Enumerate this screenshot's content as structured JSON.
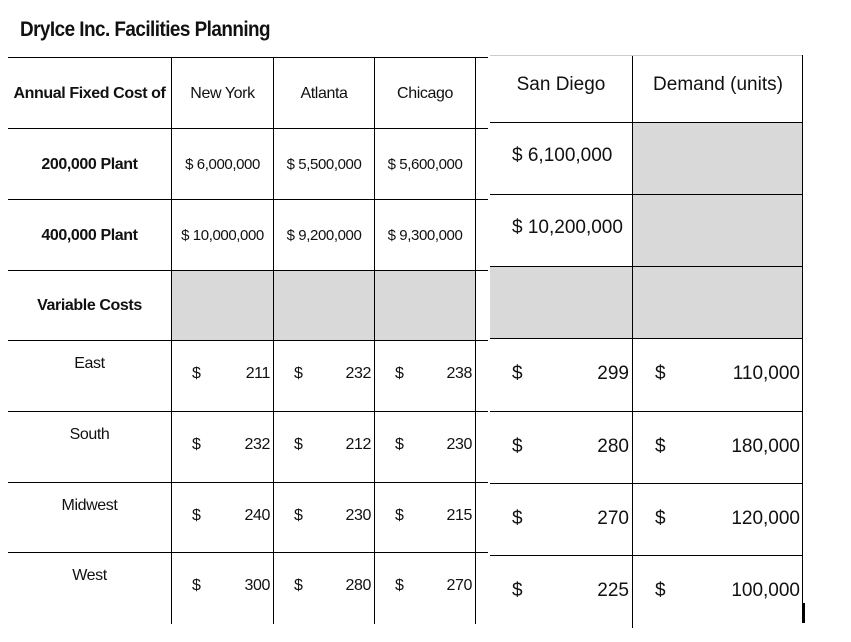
{
  "title": "DryIce Inc. Facilities Planning",
  "left_table": {
    "header": {
      "corner": "Annual Fixed Cost of",
      "cols": [
        "New York",
        "Atlanta",
        "Chicago"
      ]
    },
    "fixed_rows": [
      {
        "label": "200,000 Plant",
        "values": [
          "$  6,000,000",
          "$  5,500,000",
          "$  5,600,000"
        ]
      },
      {
        "label": "400,000 Plant",
        "values": [
          "$ 10,000,000",
          "$  9,200,000",
          "$  9,300,000"
        ]
      }
    ],
    "variable_label": "Variable Costs",
    "variable_rows": [
      {
        "label": "East",
        "values": [
          "211",
          "232",
          "238"
        ]
      },
      {
        "label": "South",
        "values": [
          "232",
          "212",
          "230"
        ]
      },
      {
        "label": "Midwest",
        "values": [
          "240",
          "230",
          "215"
        ]
      },
      {
        "label": "West",
        "values": [
          "300",
          "280",
          "270"
        ]
      }
    ],
    "currency": "$"
  },
  "right_table": {
    "header": [
      "San Diego",
      "Demand (units)"
    ],
    "fixed_values": [
      "$  6,100,000",
      "$ 10,200,000"
    ],
    "variable_rows": [
      {
        "san_diego": "299",
        "demand": "110,000"
      },
      {
        "san_diego": "280",
        "demand": "180,000"
      },
      {
        "san_diego": "270",
        "demand": "120,000"
      },
      {
        "san_diego": "225",
        "demand": "100,000"
      }
    ],
    "currency": "$"
  }
}
